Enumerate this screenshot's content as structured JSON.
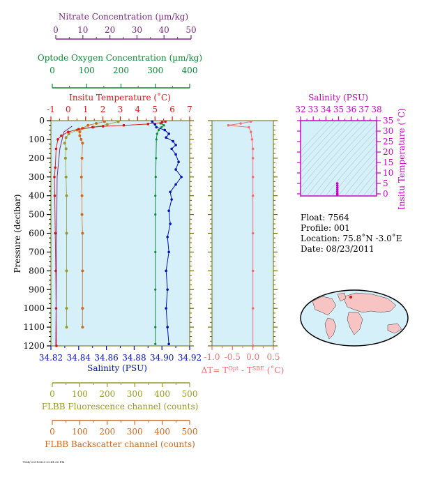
{
  "colors": {
    "nitrate": "#7a2a82",
    "oxygen": "#0a8a35",
    "temperature": "#e01010",
    "salinity": "#0010b8",
    "delta": "#f07070",
    "ts": "#cc00cc",
    "fluorescence": "#9a9a20",
    "backscatter": "#d2691e",
    "panel_bg": "#d6f0fa",
    "frame": "#6b6b00"
  },
  "axes": {
    "nitrate": {
      "title": "Nitrate Concentration (µm/kg)",
      "ticks": [
        "0",
        "10",
        "20",
        "30",
        "40",
        "50"
      ]
    },
    "oxygen": {
      "title": "Optode Oxygen Concentration (µm/kg)",
      "ticks": [
        "0",
        "100",
        "200",
        "300",
        "400"
      ]
    },
    "temperature": {
      "title": "Insitu Temperature (˚C)",
      "ticks": [
        "-1",
        "0",
        "1",
        "2",
        "3",
        "4",
        "5",
        "6",
        "7"
      ]
    },
    "salinity": {
      "title": "Salinity (PSU)",
      "ticks": [
        "34.82",
        "34.84",
        "34.86",
        "34.88",
        "34.90",
        "34.92"
      ]
    },
    "pressure": {
      "title": "Pressure (decibar)",
      "ticks": [
        "0",
        "100",
        "200",
        "300",
        "400",
        "500",
        "600",
        "700",
        "800",
        "900",
        "1000",
        "1100",
        "1200"
      ]
    },
    "delta": {
      "title_parts": [
        "ΔT= T",
        "Opt",
        " - T",
        "SBE",
        " (˚C)"
      ],
      "ticks": [
        "-1.0",
        "-0.5",
        "0.0",
        "0.5"
      ]
    },
    "ts_salinity": {
      "title": "Salinity (PSU)",
      "ticks": [
        "32",
        "33",
        "34",
        "35",
        "36",
        "37",
        "38"
      ]
    },
    "ts_temperature": {
      "title": "Insitu Temperature (˚C)",
      "ticks": [
        "0",
        "5",
        "10",
        "15",
        "20",
        "25",
        "30",
        "35"
      ]
    },
    "fluorescence": {
      "title": "FLBB Fluorescence channel (counts)",
      "ticks": [
        "0",
        "100",
        "200",
        "300",
        "400",
        "500"
      ]
    },
    "backscatter": {
      "title": "FLBB Backscatter channel (counts)",
      "ticks": [
        "0",
        "100",
        "200",
        "300",
        "400",
        "500"
      ]
    }
  },
  "info": {
    "float": "Float:  7564",
    "profile": "Profile:  001",
    "location": "Location:  75.8˚N  -3.0˚E",
    "date": "Date:  08/23/2011"
  },
  "footer": "7564/ 20110823 03:41:00 PM",
  "chart_data": [
    {
      "type": "scatter",
      "name": "Temperature profile",
      "x_axis": "Insitu Temperature (˚C)",
      "y_axis": "Pressure (decibar)",
      "xlim": [
        -1,
        7
      ],
      "ylim": [
        1200,
        0
      ],
      "points": [
        [
          5.6,
          5
        ],
        [
          5.4,
          10
        ],
        [
          4.6,
          18
        ],
        [
          3.2,
          25
        ],
        [
          2.0,
          30
        ],
        [
          1.4,
          35
        ],
        [
          0.6,
          45
        ],
        [
          0.0,
          60
        ],
        [
          -0.4,
          80
        ],
        [
          -0.6,
          100
        ],
        [
          -0.7,
          150
        ],
        [
          -0.75,
          250
        ],
        [
          -0.8,
          300
        ],
        [
          -0.78,
          400
        ],
        [
          -0.75,
          600
        ],
        [
          -0.72,
          800
        ],
        [
          -0.7,
          1000
        ],
        [
          -0.68,
          1200
        ]
      ]
    },
    {
      "type": "scatter",
      "name": "Salinity profile",
      "x_axis": "Salinity (PSU)",
      "y_axis": "Pressure (decibar)",
      "xlim": [
        34.82,
        34.92
      ],
      "ylim": [
        1200,
        0
      ],
      "points": [
        [
          34.893,
          5
        ],
        [
          34.895,
          20
        ],
        [
          34.896,
          35
        ],
        [
          34.902,
          50
        ],
        [
          34.905,
          70
        ],
        [
          34.903,
          90
        ],
        [
          34.908,
          110
        ],
        [
          34.91,
          130
        ],
        [
          34.907,
          150
        ],
        [
          34.91,
          180
        ],
        [
          34.912,
          220
        ],
        [
          34.91,
          260
        ],
        [
          34.914,
          300
        ],
        [
          34.91,
          340
        ],
        [
          34.906,
          380
        ],
        [
          34.907,
          420
        ],
        [
          34.905,
          480
        ],
        [
          34.906,
          550
        ],
        [
          34.904,
          620
        ],
        [
          34.905,
          700
        ],
        [
          34.903,
          800
        ],
        [
          34.904,
          900
        ],
        [
          34.903,
          1000
        ],
        [
          34.904,
          1100
        ],
        [
          34.905,
          1190
        ]
      ]
    },
    {
      "type": "scatter",
      "name": "Optode oxygen profile",
      "x_axis": "Optode Oxygen Concentration (µm/kg)",
      "y_axis": "Pressure (decibar)",
      "xlim": [
        0,
        400
      ],
      "ylim": [
        1200,
        0
      ],
      "points": [
        [
          320,
          5
        ],
        [
          315,
          15
        ],
        [
          325,
          25
        ],
        [
          318,
          35
        ],
        [
          310,
          50
        ],
        [
          305,
          70
        ],
        [
          303,
          100
        ],
        [
          302,
          200
        ],
        [
          301,
          300
        ],
        [
          300,
          400
        ],
        [
          300,
          500
        ],
        [
          300,
          700
        ],
        [
          300,
          900
        ],
        [
          300,
          1100
        ],
        [
          300,
          1190
        ]
      ]
    },
    {
      "type": "scatter",
      "name": "FLBB fluorescence profile",
      "x_axis": "FLBB Fluorescence channel (counts)",
      "y_axis": "Pressure (decibar)",
      "xlim": [
        0,
        500
      ],
      "ylim": [
        1200,
        0
      ],
      "points": [
        [
          240,
          5
        ],
        [
          200,
          20
        ],
        [
          150,
          35
        ],
        [
          90,
          50
        ],
        [
          60,
          70
        ],
        [
          50,
          90
        ],
        [
          45,
          120
        ],
        [
          50,
          150
        ],
        [
          48,
          200
        ],
        [
          50,
          300
        ],
        [
          52,
          400
        ],
        [
          52,
          600
        ],
        [
          52,
          800
        ],
        [
          52,
          1000
        ],
        [
          52,
          1100
        ]
      ]
    },
    {
      "type": "scatter",
      "name": "FLBB backscatter profile",
      "x_axis": "FLBB Backscatter channel (counts)",
      "y_axis": "Pressure (decibar)",
      "xlim": [
        0,
        500
      ],
      "ylim": [
        1200,
        0
      ],
      "points": [
        [
          190,
          5
        ],
        [
          160,
          15
        ],
        [
          130,
          25
        ],
        [
          110,
          40
        ],
        [
          100,
          60
        ],
        [
          100,
          80
        ],
        [
          105,
          100
        ],
        [
          110,
          120
        ],
        [
          108,
          200
        ],
        [
          106,
          300
        ],
        [
          108,
          400
        ],
        [
          108,
          500
        ],
        [
          110,
          600
        ],
        [
          110,
          800
        ],
        [
          110,
          1000
        ],
        [
          110,
          1100
        ]
      ]
    },
    {
      "type": "scatter",
      "name": "Delta T profile",
      "x_axis": "ΔT (˚C)",
      "y_axis": "Pressure (decibar)",
      "xlim": [
        -1.1,
        0.6
      ],
      "ylim": [
        1200,
        0
      ],
      "points": [
        [
          -0.05,
          5
        ],
        [
          -0.3,
          15
        ],
        [
          -0.6,
          25
        ],
        [
          -0.1,
          35
        ],
        [
          -0.05,
          60
        ],
        [
          -0.02,
          100
        ],
        [
          0.0,
          150
        ],
        [
          0.0,
          200
        ],
        [
          0.0,
          300
        ],
        [
          0.0,
          400
        ],
        [
          0.0,
          600
        ],
        [
          0.0,
          800
        ],
        [
          0.0,
          1000
        ],
        [
          0.0,
          1200
        ]
      ]
    },
    {
      "type": "scatter",
      "name": "T-S diagram",
      "x_axis": "Salinity (PSU)",
      "y_axis": "Insitu Temperature (˚C)",
      "xlim": [
        32,
        38
      ],
      "ylim": [
        -1,
        35
      ],
      "points": [
        [
          34.9,
          5.0
        ],
        [
          34.9,
          4.0
        ],
        [
          34.9,
          3.0
        ],
        [
          34.9,
          2.0
        ],
        [
          34.9,
          1.0
        ],
        [
          34.9,
          0.0
        ],
        [
          34.9,
          -0.5
        ]
      ]
    }
  ]
}
